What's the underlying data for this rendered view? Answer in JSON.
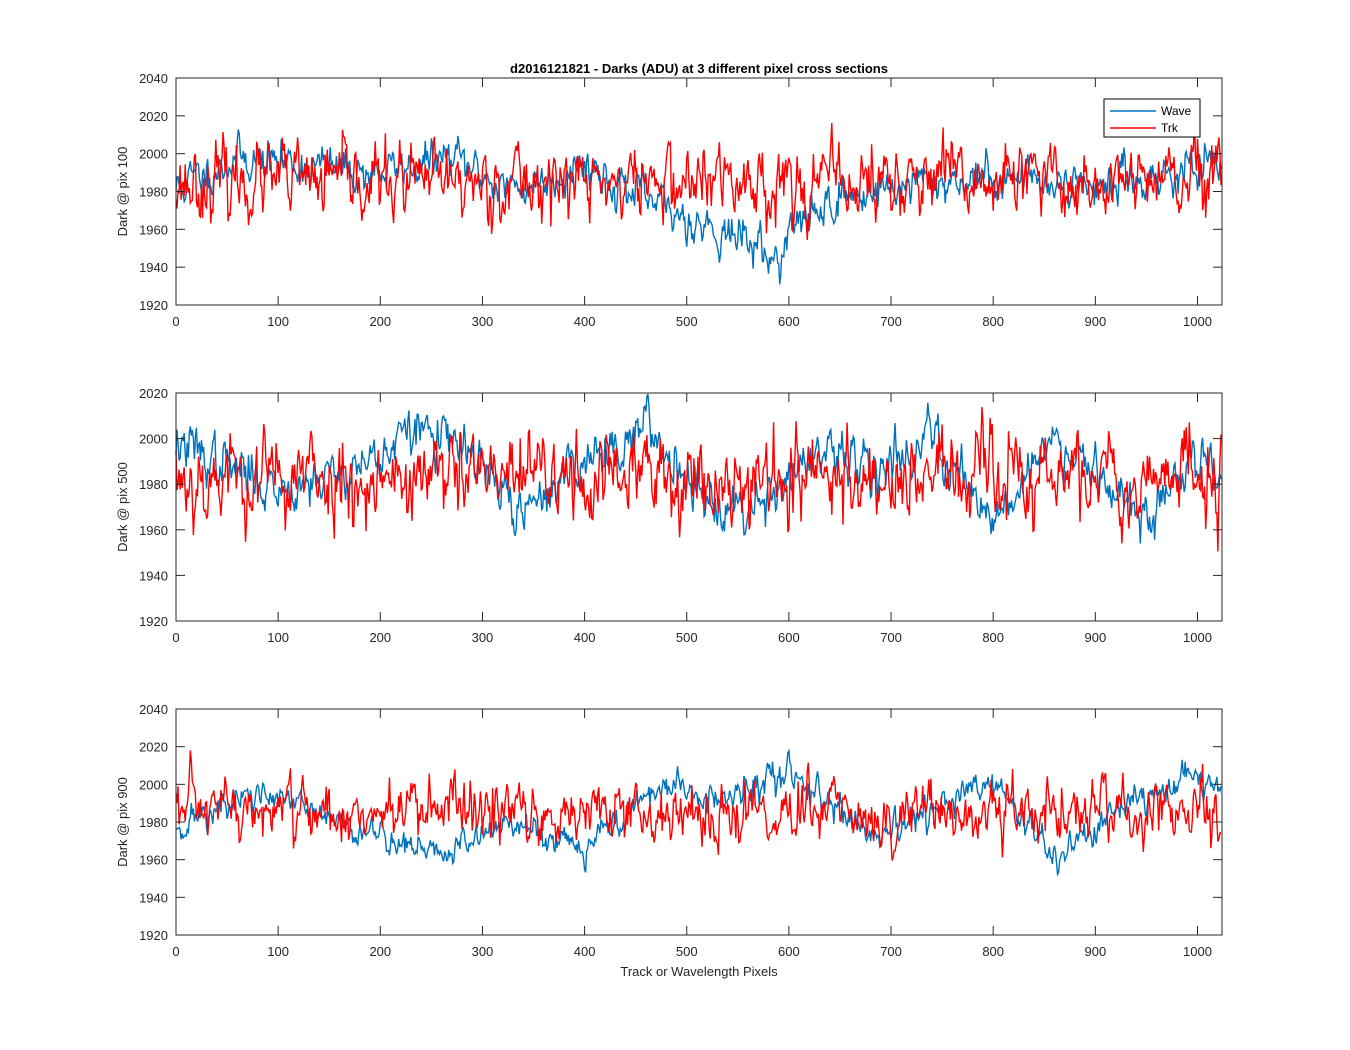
{
  "figure": {
    "title": "d2016121821 - Darks (ADU) at 3 different pixel cross sections",
    "xlabel": "Track or Wavelength Pixels"
  },
  "colors": {
    "wave": "#0072BD",
    "trk": "#FF0000",
    "axes": "#262626",
    "background": "#ffffff"
  },
  "chart_data": [
    {
      "type": "line",
      "title": "d2016121821 - Darks (ADU) at 3 different pixel cross sections",
      "xlabel": "",
      "ylabel": "Dark @ pix 100",
      "xlim": [
        0,
        1024
      ],
      "ylim": [
        1920,
        2040
      ],
      "xticks": [
        0,
        100,
        200,
        300,
        400,
        500,
        600,
        700,
        800,
        900,
        1000
      ],
      "yticks": [
        1920,
        1940,
        1960,
        1980,
        2000,
        2020,
        2040
      ],
      "legend": {
        "entries": [
          "Wave",
          "Trk"
        ],
        "placement": "top-right"
      },
      "series": [
        {
          "name": "Wave",
          "color": "#0072BD",
          "points": 1024,
          "mean": 1986,
          "noise": 8,
          "seed": 11,
          "trend": [
            [
              0,
              1982
            ],
            [
              60,
              1998
            ],
            [
              200,
              1990
            ],
            [
              270,
              1998
            ],
            [
              330,
              1980
            ],
            [
              400,
              1995
            ],
            [
              460,
              1975
            ],
            [
              520,
              1962
            ],
            [
              570,
              1952
            ],
            [
              585,
              1942
            ],
            [
              600,
              1958
            ],
            [
              640,
              1975
            ],
            [
              720,
              1984
            ],
            [
              820,
              1988
            ],
            [
              900,
              1983
            ],
            [
              1000,
              1992
            ],
            [
              1024,
              1990
            ]
          ]
        },
        {
          "name": "Trk",
          "color": "#FF0000",
          "points": 1024,
          "mean": 1985,
          "noise": 14,
          "seed": 23,
          "trend": [
            [
              0,
              1985
            ],
            [
              1024,
              1985
            ]
          ]
        }
      ]
    },
    {
      "type": "line",
      "xlabel": "",
      "ylabel": "Dark @ pix 500",
      "xlim": [
        0,
        1024
      ],
      "ylim": [
        1920,
        2020
      ],
      "xticks": [
        0,
        100,
        200,
        300,
        400,
        500,
        600,
        700,
        800,
        900,
        1000
      ],
      "yticks": [
        1920,
        1940,
        1960,
        1980,
        2000,
        2020
      ],
      "series": [
        {
          "name": "Wave",
          "color": "#0072BD",
          "points": 1024,
          "mean": 1985,
          "noise": 8,
          "seed": 37,
          "trend": [
            [
              0,
              1998
            ],
            [
              100,
              1978
            ],
            [
              180,
              1988
            ],
            [
              240,
              2005
            ],
            [
              290,
              1992
            ],
            [
              340,
              1965
            ],
            [
              380,
              1985
            ],
            [
              460,
              2005
            ],
            [
              520,
              1975
            ],
            [
              560,
              1970
            ],
            [
              620,
              1990
            ],
            [
              700,
              1990
            ],
            [
              740,
              2002
            ],
            [
              800,
              1965
            ],
            [
              860,
              2000
            ],
            [
              900,
              1990
            ],
            [
              950,
              1962
            ],
            [
              1000,
              1995
            ],
            [
              1024,
              1985
            ]
          ]
        },
        {
          "name": "Trk",
          "color": "#FF0000",
          "points": 1024,
          "mean": 1983,
          "noise": 14,
          "seed": 53,
          "trend": [
            [
              0,
              1983
            ],
            [
              1024,
              1983
            ]
          ]
        }
      ]
    },
    {
      "type": "line",
      "xlabel": "Track or Wavelength Pixels",
      "ylabel": "Dark @ pix 900",
      "xlim": [
        0,
        1024
      ],
      "ylim": [
        1920,
        2040
      ],
      "xticks": [
        0,
        100,
        200,
        300,
        400,
        500,
        600,
        700,
        800,
        900,
        1000
      ],
      "yticks": [
        1920,
        1940,
        1960,
        1980,
        2000,
        2020,
        2040
      ],
      "series": [
        {
          "name": "Wave",
          "color": "#0072BD",
          "points": 1024,
          "mean": 1984,
          "noise": 6,
          "seed": 71,
          "trend": [
            [
              0,
              1978
            ],
            [
              80,
              1995
            ],
            [
              150,
              1982
            ],
            [
              260,
              1962
            ],
            [
              320,
              1980
            ],
            [
              400,
              1968
            ],
            [
              480,
              2000
            ],
            [
              540,
              1990
            ],
            [
              600,
              2008
            ],
            [
              650,
              1985
            ],
            [
              690,
              1968
            ],
            [
              720,
              1980
            ],
            [
              800,
              2002
            ],
            [
              860,
              1960
            ],
            [
              920,
              1985
            ],
            [
              1000,
              2005
            ],
            [
              1024,
              1998
            ]
          ]
        },
        {
          "name": "Trk",
          "color": "#FF0000",
          "points": 1024,
          "mean": 1985,
          "noise": 12,
          "seed": 97,
          "trend": [
            [
              0,
              1985
            ],
            [
              1024,
              1985
            ]
          ]
        }
      ]
    }
  ]
}
